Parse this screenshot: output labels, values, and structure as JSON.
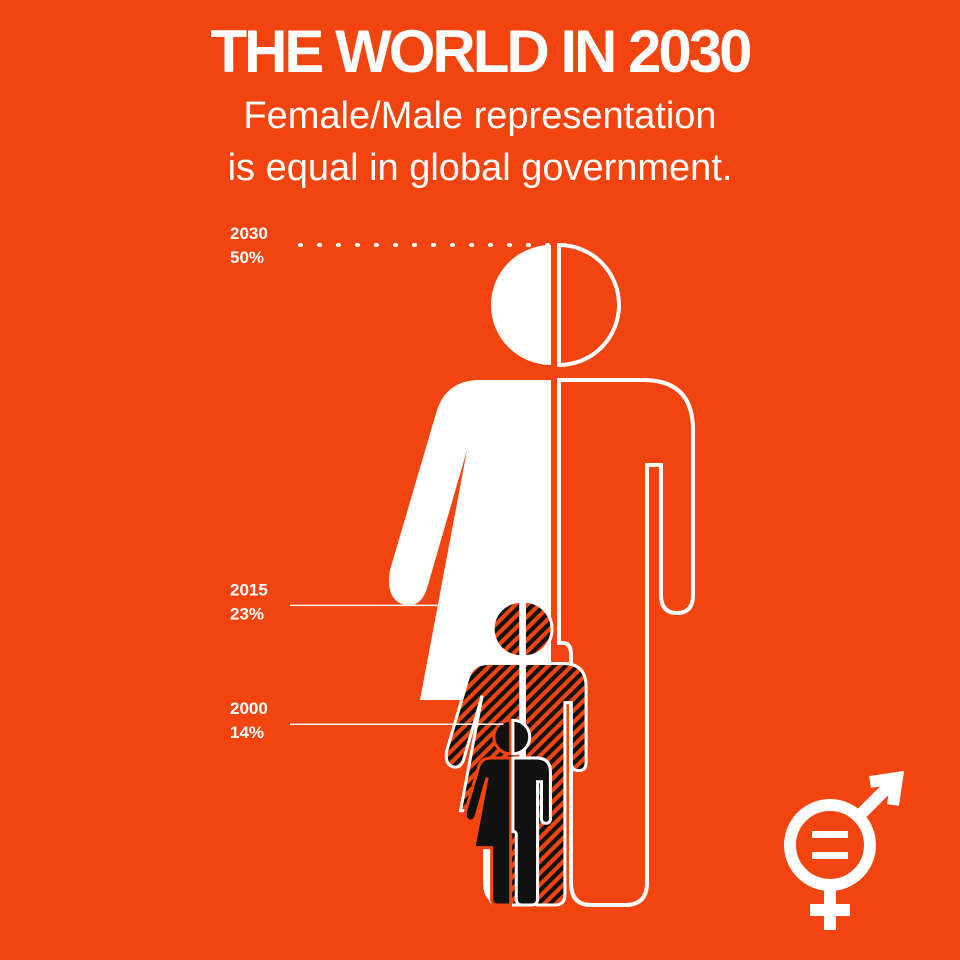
{
  "chart_data": {
    "type": "pictogram",
    "title": "THE WORLD IN 2030",
    "subtitle": [
      "Female/Male representation",
      "is equal in global government."
    ],
    "categories": [
      "2030",
      "2015",
      "2000"
    ],
    "values": [
      50,
      23,
      14
    ],
    "value_labels": [
      "50%",
      "23%",
      "14%"
    ]
  }
}
